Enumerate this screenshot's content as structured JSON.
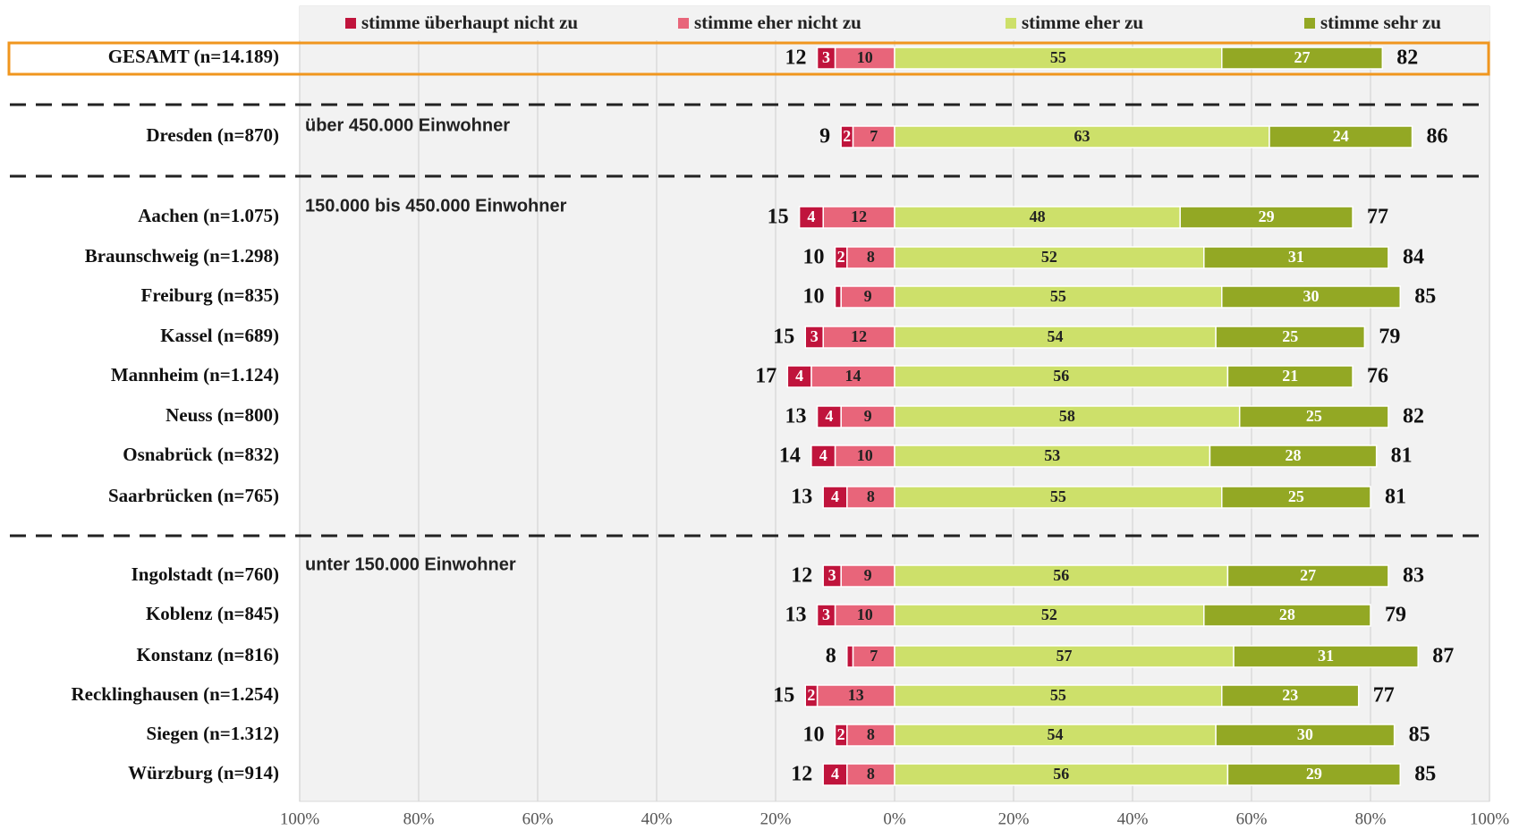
{
  "chart_data": {
    "type": "diverging-bar",
    "categories": [
      "GESAMT (n=14.189)",
      "Dresden (n=870)",
      "Aachen (n=1.075)",
      "Braunschweig (n=1.298)",
      "Freiburg (n=835)",
      "Kassel (n=689)",
      "Mannheim (n=1.124)",
      "Neuss (n=800)",
      "Osnabrück (n=832)",
      "Saarbrücken (n=765)",
      "Ingolstadt (n=760)",
      "Koblenz (n=845)",
      "Konstanz (n=816)",
      "Recklinghausen (n=1.254)",
      "Siegen (n=1.312)",
      "Würzburg (n=914)"
    ],
    "series": [
      {
        "name": "stimme überhaupt nicht zu",
        "color": "#c0143c",
        "side": "left",
        "values": [
          3,
          2,
          4,
          2,
          1,
          3,
          4,
          4,
          4,
          4,
          3,
          3,
          1,
          2,
          2,
          4
        ]
      },
      {
        "name": "stimme eher nicht zu",
        "color": "#e8657a",
        "side": "left",
        "values": [
          10,
          7,
          12,
          8,
          9,
          12,
          14,
          9,
          10,
          8,
          9,
          10,
          7,
          13,
          8,
          8
        ]
      },
      {
        "name": "stimme eher  zu",
        "color": "#cde06a",
        "side": "right",
        "values": [
          55,
          63,
          48,
          52,
          55,
          54,
          56,
          58,
          53,
          55,
          56,
          52,
          57,
          55,
          54,
          56
        ]
      },
      {
        "name": "stimme sehr zu",
        "color": "#93a824",
        "side": "right",
        "values": [
          27,
          24,
          29,
          31,
          30,
          25,
          21,
          25,
          28,
          25,
          27,
          28,
          31,
          23,
          30,
          29
        ]
      }
    ],
    "disagree_totals": [
      12,
      9,
      15,
      10,
      10,
      15,
      17,
      13,
      14,
      13,
      12,
      13,
      8,
      15,
      10,
      12
    ],
    "agree_totals": [
      82,
      86,
      77,
      84,
      85,
      79,
      76,
      82,
      81,
      81,
      83,
      79,
      87,
      77,
      85,
      85
    ],
    "annotations": [
      {
        "text": "über 450.000 Einwohner",
        "row": 1
      },
      {
        "text": "150.000 bis 450.000 Einwohner",
        "row": 2
      },
      {
        "text": "unter 150.000 Einwohner",
        "row": 10
      }
    ],
    "xlim": [
      -100,
      100
    ],
    "xticks": [
      {
        "value": -100,
        "label": "100%"
      },
      {
        "value": -80,
        "label": "80%"
      },
      {
        "value": -60,
        "label": "60%"
      },
      {
        "value": -40,
        "label": "40%"
      },
      {
        "value": -20,
        "label": "20%"
      },
      {
        "value": 0,
        "label": "0%"
      },
      {
        "value": 20,
        "label": "20%"
      },
      {
        "value": 40,
        "label": "40%"
      },
      {
        "value": 60,
        "label": "60%"
      },
      {
        "value": 80,
        "label": "80%"
      },
      {
        "value": 100,
        "label": "100%"
      }
    ],
    "grid": true
  }
}
